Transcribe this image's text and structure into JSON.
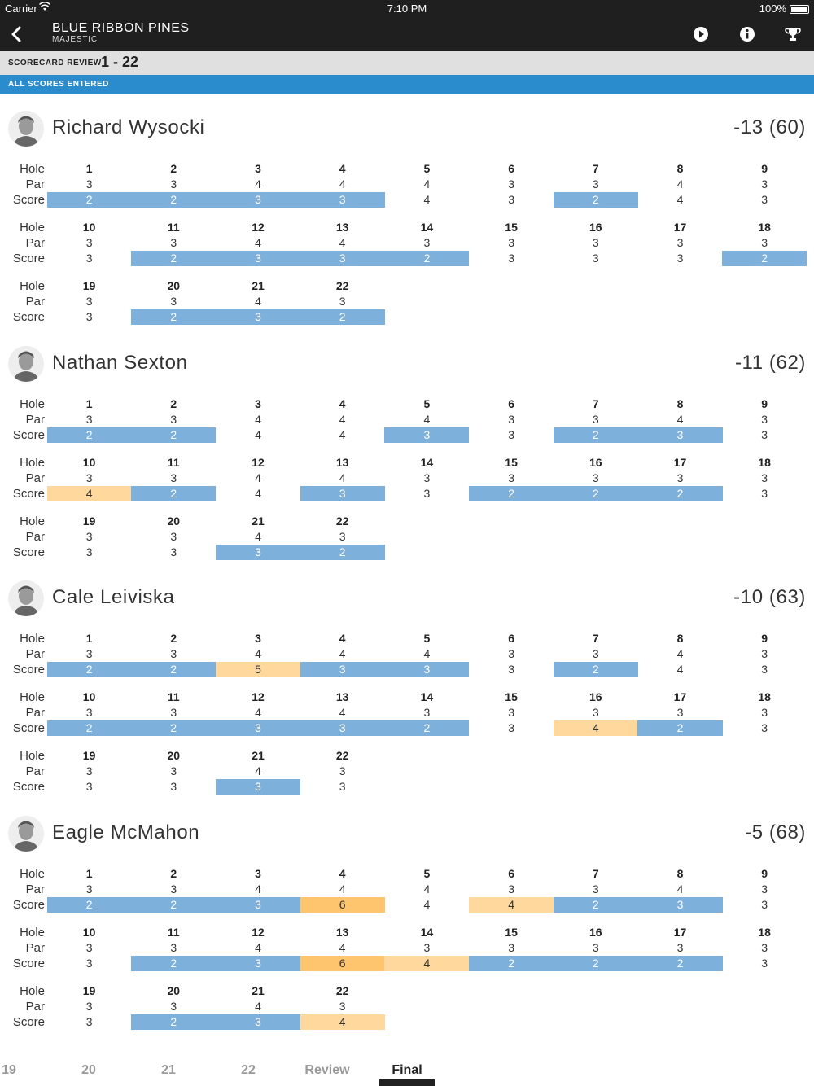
{
  "status_bar": {
    "carrier": "Carrier",
    "time": "7:10 PM",
    "battery": "100%"
  },
  "nav": {
    "title": "BLUE RIBBON PINES",
    "subtitle": "MAJESTIC"
  },
  "review": {
    "label": "SCORECARD REVIEW",
    "range": "1 - 22",
    "status": "ALL SCORES ENTERED"
  },
  "row_labels": {
    "hole": "Hole",
    "par": "Par",
    "score": "Score"
  },
  "holes": [
    "1",
    "2",
    "3",
    "4",
    "5",
    "6",
    "7",
    "8",
    "9",
    "10",
    "11",
    "12",
    "13",
    "14",
    "15",
    "16",
    "17",
    "18",
    "19",
    "20",
    "21",
    "22"
  ],
  "pars": [
    "3",
    "3",
    "4",
    "4",
    "4",
    "3",
    "3",
    "4",
    "3",
    "3",
    "3",
    "4",
    "4",
    "3",
    "3",
    "3",
    "3",
    "3",
    "3",
    "3",
    "4",
    "3"
  ],
  "players": [
    {
      "name": "Richard Wysocki",
      "total": "-13 (60)",
      "scores": [
        "2",
        "2",
        "3",
        "3",
        "4",
        "3",
        "2",
        "4",
        "3",
        "3",
        "2",
        "3",
        "3",
        "2",
        "3",
        "3",
        "3",
        "2",
        "3",
        "2",
        "3",
        "2"
      ]
    },
    {
      "name": "Nathan Sexton",
      "total": "-11 (62)",
      "scores": [
        "2",
        "2",
        "4",
        "4",
        "3",
        "3",
        "2",
        "3",
        "3",
        "4",
        "2",
        "4",
        "3",
        "3",
        "2",
        "2",
        "2",
        "3",
        "3",
        "3",
        "3",
        "2"
      ]
    },
    {
      "name": "Cale Leiviska",
      "total": "-10 (63)",
      "scores": [
        "2",
        "2",
        "5",
        "3",
        "3",
        "3",
        "2",
        "4",
        "3",
        "2",
        "2",
        "3",
        "3",
        "2",
        "3",
        "4",
        "2",
        "3",
        "3",
        "3",
        "3",
        "3"
      ]
    },
    {
      "name": "Eagle McMahon",
      "total": "-5 (68)",
      "scores": [
        "2",
        "2",
        "3",
        "6",
        "4",
        "4",
        "2",
        "3",
        "3",
        "3",
        "2",
        "3",
        "6",
        "4",
        "2",
        "2",
        "2",
        "3",
        "3",
        "2",
        "3",
        "4"
      ]
    }
  ],
  "tabs": [
    {
      "label": "19",
      "active": false
    },
    {
      "label": "20",
      "active": false
    },
    {
      "label": "21",
      "active": false
    },
    {
      "label": "22",
      "active": false
    },
    {
      "label": "Review",
      "active": false
    },
    {
      "label": "Final",
      "active": true
    }
  ],
  "colors": {
    "birdie": "#7eb0dc",
    "bogey": "#ffd89e",
    "double": "#ffc46e",
    "header": "#1f1f1f",
    "accent": "#2a8ccc"
  },
  "icons": {
    "back": "chevron-left-icon",
    "play": "play-icon",
    "info": "info-icon",
    "trophy": "trophy-icon"
  }
}
